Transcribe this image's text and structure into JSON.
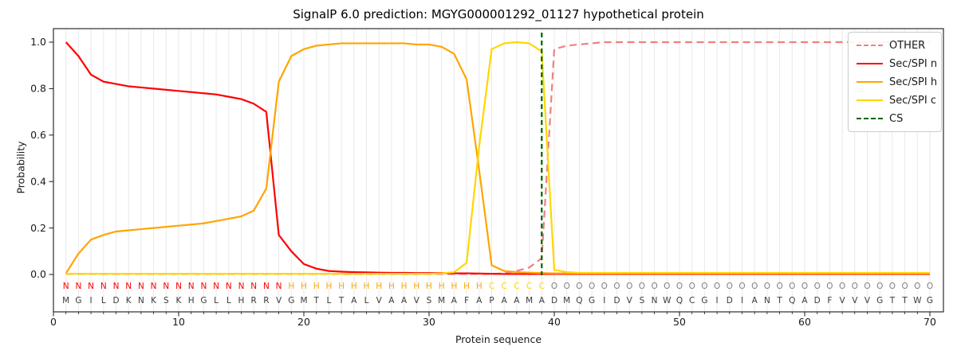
{
  "title": "SignalP 6.0 prediction: MGYG000001292_01127 hypothetical protein",
  "legend": {
    "items": [
      {
        "label": "OTHER",
        "color": "#f08080",
        "style": "dashed"
      },
      {
        "label": "Sec/SPI n",
        "color": "#ff0000",
        "style": "solid"
      },
      {
        "label": "Sec/SPI h",
        "color": "#ffa500",
        "style": "solid"
      },
      {
        "label": "Sec/SPI c",
        "color": "#ffd700",
        "style": "solid"
      },
      {
        "label": "CS",
        "color": "#006400",
        "style": "dashed"
      }
    ]
  },
  "chart_data": {
    "type": "line",
    "title": "SignalP 6.0 prediction: MGYG000001292_01127 hypothetical protein",
    "xlabel": "Protein sequence",
    "ylabel": "Probability",
    "xlim": [
      0,
      71
    ],
    "ylim": [
      -0.16,
      1.06
    ],
    "grid": "vertical-minor",
    "legend_position": "upper right",
    "xticks": [
      0,
      10,
      20,
      30,
      40,
      50,
      60,
      70
    ],
    "yticks": [
      0.0,
      0.2,
      0.4,
      0.6,
      0.8,
      1.0
    ],
    "x": [
      1,
      2,
      3,
      4,
      5,
      6,
      7,
      8,
      9,
      10,
      11,
      12,
      13,
      14,
      15,
      16,
      17,
      18,
      19,
      20,
      21,
      22,
      23,
      24,
      25,
      26,
      27,
      28,
      29,
      30,
      31,
      32,
      33,
      34,
      35,
      36,
      37,
      38,
      39,
      40,
      41,
      42,
      43,
      44,
      45,
      46,
      47,
      48,
      49,
      50,
      51,
      52,
      53,
      54,
      55,
      56,
      57,
      58,
      59,
      60,
      61,
      62,
      63,
      64,
      65,
      66,
      67,
      68,
      69,
      70
    ],
    "series": [
      {
        "name": "OTHER",
        "color": "#f08080",
        "dashed": true,
        "values": [
          0.002,
          0.002,
          0.002,
          0.002,
          0.002,
          0.002,
          0.002,
          0.002,
          0.002,
          0.002,
          0.002,
          0.002,
          0.002,
          0.002,
          0.002,
          0.002,
          0.002,
          0.002,
          0.002,
          0.002,
          0.002,
          0.002,
          0.002,
          0.002,
          0.002,
          0.002,
          0.002,
          0.002,
          0.002,
          0.002,
          0.002,
          0.002,
          0.002,
          0.002,
          0.002,
          0.005,
          0.015,
          0.03,
          0.07,
          0.97,
          0.985,
          0.99,
          0.995,
          1.0,
          1.0,
          1.0,
          1.0,
          1.0,
          1.0,
          1.0,
          1.0,
          1.0,
          1.0,
          1.0,
          1.0,
          1.0,
          1.0,
          1.0,
          1.0,
          1.0,
          1.0,
          1.0,
          1.0,
          1.0,
          1.0,
          1.0,
          1.0,
          1.0,
          1.0,
          1.0
        ]
      },
      {
        "name": "Sec/SPI n",
        "color": "#ff0000",
        "dashed": false,
        "values": [
          1.0,
          0.94,
          0.86,
          0.83,
          0.82,
          0.81,
          0.805,
          0.8,
          0.795,
          0.79,
          0.785,
          0.78,
          0.775,
          0.765,
          0.755,
          0.735,
          0.7,
          0.17,
          0.1,
          0.045,
          0.025,
          0.015,
          0.012,
          0.01,
          0.009,
          0.008,
          0.007,
          0.007,
          0.006,
          0.006,
          0.006,
          0.005,
          0.005,
          0.004,
          0.003,
          0.002,
          0.002,
          0.002,
          0.002,
          0.002,
          0.002,
          0.002,
          0.002,
          0.002,
          0.002,
          0.002,
          0.002,
          0.002,
          0.002,
          0.002,
          0.002,
          0.002,
          0.002,
          0.002,
          0.002,
          0.002,
          0.002,
          0.002,
          0.002,
          0.002,
          0.002,
          0.002,
          0.002,
          0.002,
          0.002,
          0.002,
          0.002,
          0.002,
          0.002,
          0.002
        ]
      },
      {
        "name": "Sec/SPI h",
        "color": "#ffa500",
        "dashed": false,
        "values": [
          0.005,
          0.09,
          0.15,
          0.17,
          0.185,
          0.19,
          0.195,
          0.2,
          0.205,
          0.21,
          0.215,
          0.22,
          0.23,
          0.24,
          0.25,
          0.275,
          0.37,
          0.83,
          0.94,
          0.97,
          0.985,
          0.99,
          0.995,
          0.995,
          0.995,
          0.995,
          0.995,
          0.995,
          0.99,
          0.99,
          0.98,
          0.95,
          0.84,
          0.45,
          0.04,
          0.015,
          0.01,
          0.008,
          0.006,
          0.005,
          0.005,
          0.005,
          0.005,
          0.005,
          0.005,
          0.005,
          0.005,
          0.005,
          0.005,
          0.005,
          0.005,
          0.005,
          0.005,
          0.005,
          0.005,
          0.005,
          0.005,
          0.005,
          0.005,
          0.005,
          0.005,
          0.005,
          0.005,
          0.005,
          0.005,
          0.005,
          0.005,
          0.005,
          0.005,
          0.005
        ]
      },
      {
        "name": "Sec/SPI c",
        "color": "#ffd700",
        "dashed": false,
        "values": [
          0.003,
          0.003,
          0.003,
          0.003,
          0.003,
          0.003,
          0.003,
          0.003,
          0.003,
          0.003,
          0.003,
          0.003,
          0.003,
          0.003,
          0.003,
          0.003,
          0.003,
          0.003,
          0.003,
          0.003,
          0.003,
          0.003,
          0.003,
          0.003,
          0.003,
          0.003,
          0.003,
          0.003,
          0.003,
          0.003,
          0.005,
          0.01,
          0.05,
          0.55,
          0.97,
          0.995,
          1.0,
          0.995,
          0.96,
          0.02,
          0.01,
          0.007,
          0.007,
          0.007,
          0.007,
          0.007,
          0.007,
          0.007,
          0.007,
          0.007,
          0.007,
          0.007,
          0.007,
          0.007,
          0.007,
          0.007,
          0.007,
          0.007,
          0.007,
          0.007,
          0.007,
          0.007,
          0.007,
          0.007,
          0.007,
          0.007,
          0.007,
          0.007,
          0.007,
          0.007
        ]
      }
    ],
    "cs_line": {
      "name": "CS",
      "x": 39,
      "color": "#006400",
      "dashed": true
    },
    "region_labels": "NNNNNNNNNNNNNNNNNNHHHHHHHHHHHHHHHHCCCCCOOOOOOOOOOOOOOOOOOOOOOOOOOOOOOO",
    "sequence": "MGILDKNKSKHGLLHRRVGMTLTALVAAVSMAFAPAAMADMQGIDVSNWQCGIDIANTQADFVVVGTTWG",
    "region_colors": {
      "N": "#ff0000",
      "H": "#ffa500",
      "C": "#ffd700",
      "O": "#808080"
    },
    "sequence_color": "#3c3c3c"
  }
}
